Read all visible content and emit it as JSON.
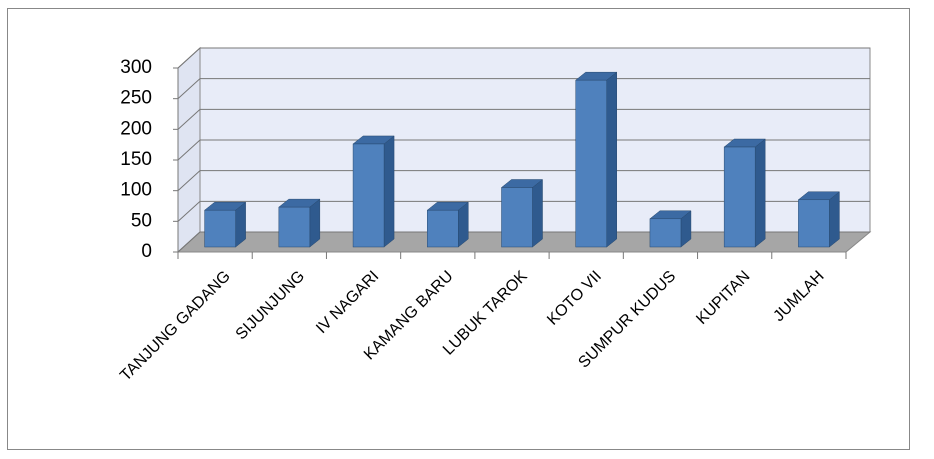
{
  "chart_data": {
    "type": "bar3d",
    "categories": [
      "TANJUNG GADANG",
      "SIJUNJUNG",
      "IV NAGARI",
      "KAMANG BARU",
      "LUBUK TAROK",
      "KOTO VII",
      "SUMPUR KUDUS",
      "KUPITAN",
      "JUMLAH"
    ],
    "values": [
      60,
      65,
      168,
      60,
      97,
      272,
      46,
      163,
      77
    ],
    "color": "#4f81bd",
    "ylim": [
      0,
      300
    ],
    "yticks": [
      0,
      50,
      100,
      150,
      200,
      250,
      300
    ],
    "grid": true
  }
}
